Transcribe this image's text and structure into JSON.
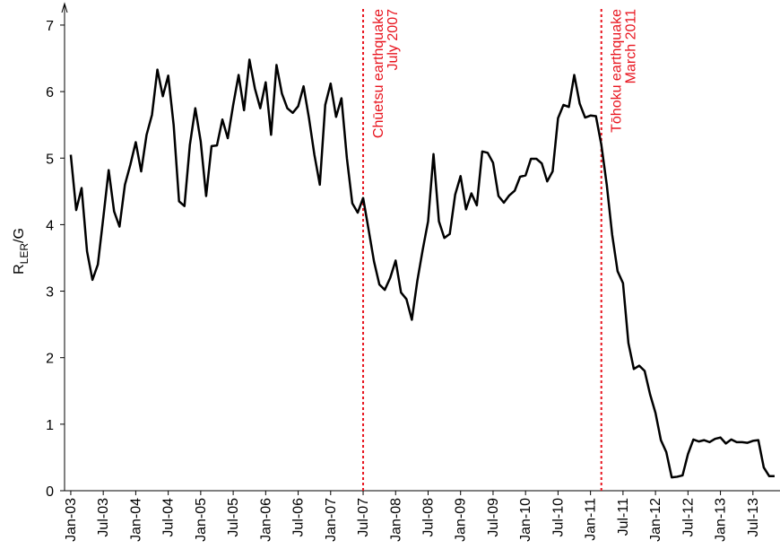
{
  "chart_data": {
    "type": "line",
    "ylabel": {
      "main": "R",
      "sub": "LER",
      "rest": "/G"
    },
    "x": [
      0,
      1,
      2,
      3,
      4,
      5,
      6,
      7,
      8,
      9,
      10,
      11,
      12,
      13,
      14,
      15,
      16,
      17,
      18,
      19,
      20,
      21,
      22,
      23,
      24,
      25,
      26,
      27,
      28,
      29,
      30,
      31,
      32,
      33,
      34,
      35,
      36,
      37,
      38,
      39,
      40,
      41,
      42,
      43,
      44,
      45,
      46,
      47,
      48,
      49,
      50,
      51,
      52,
      53,
      54,
      55,
      56,
      57,
      58,
      59,
      60,
      61,
      62,
      63,
      64,
      65,
      66,
      67,
      68,
      69,
      70,
      71,
      72,
      73,
      74,
      75,
      76,
      77,
      78,
      79,
      80,
      81,
      82,
      83,
      84,
      85,
      86,
      87,
      88,
      89,
      90,
      91,
      92,
      93,
      94,
      95,
      96,
      97,
      98,
      99,
      100,
      101,
      102,
      103,
      104,
      105,
      106,
      107,
      108,
      109,
      110,
      111,
      112,
      113,
      114,
      115,
      116,
      117,
      118,
      119,
      120,
      121,
      122,
      123,
      124,
      125,
      126,
      127,
      128,
      129,
      130
    ],
    "series": [
      {
        "name": "RLER/G",
        "color": "#000000",
        "values": [
          5.05,
          4.22,
          4.55,
          3.6,
          3.17,
          3.4,
          4.1,
          4.82,
          4.2,
          3.97,
          4.6,
          4.9,
          5.24,
          4.8,
          5.35,
          5.65,
          6.33,
          5.93,
          6.24,
          5.5,
          4.35,
          4.28,
          5.2,
          5.75,
          5.25,
          4.43,
          5.18,
          5.19,
          5.58,
          5.3,
          5.8,
          6.25,
          5.72,
          6.48,
          6.05,
          5.75,
          6.14,
          5.35,
          6.4,
          5.97,
          5.75,
          5.68,
          5.78,
          6.08,
          5.6,
          5.05,
          4.6,
          5.8,
          6.12,
          5.62,
          5.9,
          5.0,
          4.32,
          4.18,
          4.4,
          3.93,
          3.45,
          3.1,
          3.02,
          3.2,
          3.46,
          2.98,
          2.88,
          2.57,
          3.15,
          3.62,
          4.05,
          5.06,
          4.05,
          3.8,
          3.86,
          4.45,
          4.73,
          4.23,
          4.47,
          4.29,
          5.1,
          5.08,
          4.93,
          4.43,
          4.33,
          4.44,
          4.51,
          4.72,
          4.74,
          4.99,
          4.99,
          4.92,
          4.65,
          4.8,
          5.6,
          5.8,
          5.77,
          6.25,
          5.82,
          5.61,
          5.64,
          5.63,
          5.2,
          4.6,
          3.85,
          3.3,
          3.12,
          2.22,
          1.83,
          1.88,
          1.8,
          1.45,
          1.17,
          0.76,
          0.58,
          0.2,
          0.21,
          0.23,
          0.55,
          0.77,
          0.74,
          0.76,
          0.73,
          0.78,
          0.8,
          0.71,
          0.77,
          0.73,
          0.73,
          0.72,
          0.75,
          0.76,
          0.35,
          0.22,
          0.22
        ]
      }
    ],
    "xlim": [
      -1.15,
      131
    ],
    "xticks": [
      {
        "value": 0,
        "label": "Jan-03"
      },
      {
        "value": 6,
        "label": "Jul-03"
      },
      {
        "value": 12,
        "label": "Jan-04"
      },
      {
        "value": 18,
        "label": "Jul-04"
      },
      {
        "value": 24,
        "label": "Jan-05"
      },
      {
        "value": 30,
        "label": "Jul-05"
      },
      {
        "value": 36,
        "label": "Jan-06"
      },
      {
        "value": 42,
        "label": "Jul-06"
      },
      {
        "value": 48,
        "label": "Jan-07"
      },
      {
        "value": 54,
        "label": "Jul-07"
      },
      {
        "value": 60,
        "label": "Jan-08"
      },
      {
        "value": 66,
        "label": "Jul-08"
      },
      {
        "value": 72,
        "label": "Jan-09"
      },
      {
        "value": 78,
        "label": "Jul-09"
      },
      {
        "value": 84,
        "label": "Jan-10"
      },
      {
        "value": 90,
        "label": "Jul-10"
      },
      {
        "value": 96,
        "label": "Jan-11"
      },
      {
        "value": 102,
        "label": "Jul-11"
      },
      {
        "value": 108,
        "label": "Jan-12"
      },
      {
        "value": 114,
        "label": "Jul-12"
      },
      {
        "value": 120,
        "label": "Jan-13"
      },
      {
        "value": 126,
        "label": "Jul-13"
      }
    ],
    "ylim": [
      0,
      7.35
    ],
    "yticks": [
      0,
      1,
      2,
      3,
      4,
      5,
      6,
      7
    ],
    "annotations": [
      {
        "x": 54,
        "color": "#e8141e",
        "text": [
          "Chūetsu earthquake",
          "July 2007"
        ]
      },
      {
        "x": 98,
        "color": "#e8141e",
        "text": [
          "Tōhoku earthquake",
          "March 2011"
        ]
      }
    ]
  }
}
